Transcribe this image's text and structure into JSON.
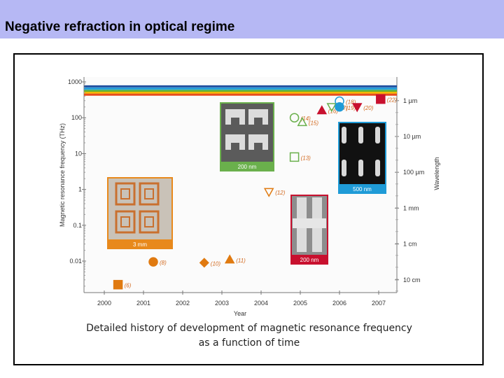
{
  "slide": {
    "title": "Negative refraction in optical regime",
    "caption_line1": "Detailed history of development of magnetic resonance frequency",
    "caption_line2": "as a function of time"
  },
  "chart_data": {
    "type": "scatter",
    "xlabel": "Year",
    "ylabel": "Magnetic resonance frequency (THz)",
    "y2label": "Wavelength",
    "x_ticks": [
      "2000",
      "2001",
      "2002",
      "2003",
      "2004",
      "2005",
      "2006",
      "2007"
    ],
    "xlim": [
      1999.5,
      2007.4
    ],
    "y_ticks": [
      {
        "value": 1000,
        "label": "1000"
      },
      {
        "value": 100,
        "label": "100"
      },
      {
        "value": 10,
        "label": "10"
      },
      {
        "value": 1,
        "label": "1"
      },
      {
        "value": 0.1,
        "label": "0.1"
      },
      {
        "value": 0.01,
        "label": "0.01"
      }
    ],
    "ylim": [
      0.001,
      1000
    ],
    "log_y": true,
    "wavelength_ticks": [
      {
        "freq": 300,
        "label": "1 µm"
      },
      {
        "freq": 30,
        "label": "10 µm"
      },
      {
        "freq": 3,
        "label": "100 µm"
      },
      {
        "freq": 0.3,
        "label": "1 mm"
      },
      {
        "freq": 0.03,
        "label": "1 cm"
      },
      {
        "freq": 0.003,
        "label": "10 cm"
      }
    ],
    "visible_bands": [
      {
        "freq": 750,
        "color": "#1f4fa0"
      },
      {
        "freq": 650,
        "color": "#1f9bd7"
      },
      {
        "freq": 560,
        "color": "#4caf3a"
      },
      {
        "freq": 500,
        "color": "#f2b705"
      },
      {
        "freq": 440,
        "color": "#e84c1c"
      }
    ],
    "points": [
      {
        "x": 2000.35,
        "y": 0.0022,
        "ref": "(6)",
        "marker": "square",
        "filled": true,
        "color": "#e07a10"
      },
      {
        "x": 2001.25,
        "y": 0.0095,
        "ref": "(8)",
        "marker": "circle",
        "filled": true,
        "color": "#e07a10"
      },
      {
        "x": 2002.55,
        "y": 0.009,
        "ref": "(10)",
        "marker": "diamond",
        "filled": true,
        "color": "#e07a10"
      },
      {
        "x": 2003.2,
        "y": 0.011,
        "ref": "(11)",
        "marker": "triangle",
        "filled": true,
        "color": "#e07a10"
      },
      {
        "x": 2004.2,
        "y": 0.85,
        "ref": "(12)",
        "marker": "triangle-down",
        "filled": false,
        "color": "#e07a10"
      },
      {
        "x": 2004.85,
        "y": 8,
        "ref": "(13)",
        "marker": "square",
        "filled": false,
        "color": "#6ab04c"
      },
      {
        "x": 2004.85,
        "y": 100,
        "ref": "(14)",
        "marker": "circle",
        "filled": false,
        "color": "#6ab04c"
      },
      {
        "x": 2005.05,
        "y": 75,
        "ref": "(15)",
        "marker": "triangle",
        "filled": false,
        "color": "#6ab04c"
      },
      {
        "x": 2005.55,
        "y": 160,
        "ref": "(16)",
        "marker": "triangle",
        "filled": true,
        "color": "#c8102e"
      },
      {
        "x": 2005.8,
        "y": 200,
        "ref": "(17)",
        "marker": "triangle-down",
        "filled": false,
        "color": "#6ab04c"
      },
      {
        "x": 2006.0,
        "y": 290,
        "ref": "(18)",
        "marker": "circle",
        "filled": false,
        "color": "#1f9bd7"
      },
      {
        "x": 2006.0,
        "y": 200,
        "ref": "(19)",
        "marker": "circle",
        "filled": true,
        "color": "#1f9bd7"
      },
      {
        "x": 2006.45,
        "y": 200,
        "ref": "(20)",
        "marker": "triangle-down",
        "filled": true,
        "color": "#c8102e"
      },
      {
        "x": 2007.05,
        "y": 330,
        "ref": "(22)",
        "marker": "square",
        "filled": true,
        "color": "#c8102e"
      }
    ],
    "insets": [
      {
        "scale_label": "3 mm",
        "label_color": "#e8891c"
      },
      {
        "scale_label": "200 nm",
        "label_color": "#6ab04c"
      },
      {
        "scale_label": "500 nm",
        "label_color": "#1f9bd7"
      },
      {
        "scale_label": "200 nm",
        "label_color": "#c8102e"
      }
    ]
  }
}
